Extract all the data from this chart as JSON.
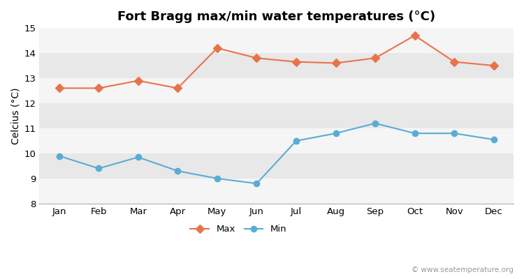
{
  "title": "Fort Bragg max/min water temperatures (°C)",
  "months": [
    "Jan",
    "Feb",
    "Mar",
    "Apr",
    "May",
    "Jun",
    "Jul",
    "Aug",
    "Sep",
    "Oct",
    "Nov",
    "Dec"
  ],
  "max_temps": [
    12.6,
    12.6,
    12.9,
    12.6,
    14.2,
    13.8,
    13.65,
    13.6,
    13.8,
    14.7,
    13.65,
    13.5
  ],
  "min_temps": [
    9.9,
    9.4,
    9.85,
    9.3,
    9.0,
    8.8,
    10.5,
    10.8,
    11.2,
    10.8,
    10.8,
    10.55
  ],
  "max_color": "#e8734a",
  "min_color": "#5aacd4",
  "fig_bg_color": "#ffffff",
  "plot_bg_color": "#f0f0f0",
  "band_light": "#f5f5f5",
  "band_dark": "#e8e8e8",
  "ylabel": "Celcius (°C)",
  "ylim": [
    8,
    15
  ],
  "yticks": [
    8,
    9,
    10,
    11,
    12,
    13,
    14,
    15
  ],
  "legend_max": "Max",
  "legend_min": "Min",
  "watermark": "© www.seatemperature.org",
  "title_fontsize": 13,
  "axis_fontsize": 10,
  "tick_fontsize": 9.5
}
